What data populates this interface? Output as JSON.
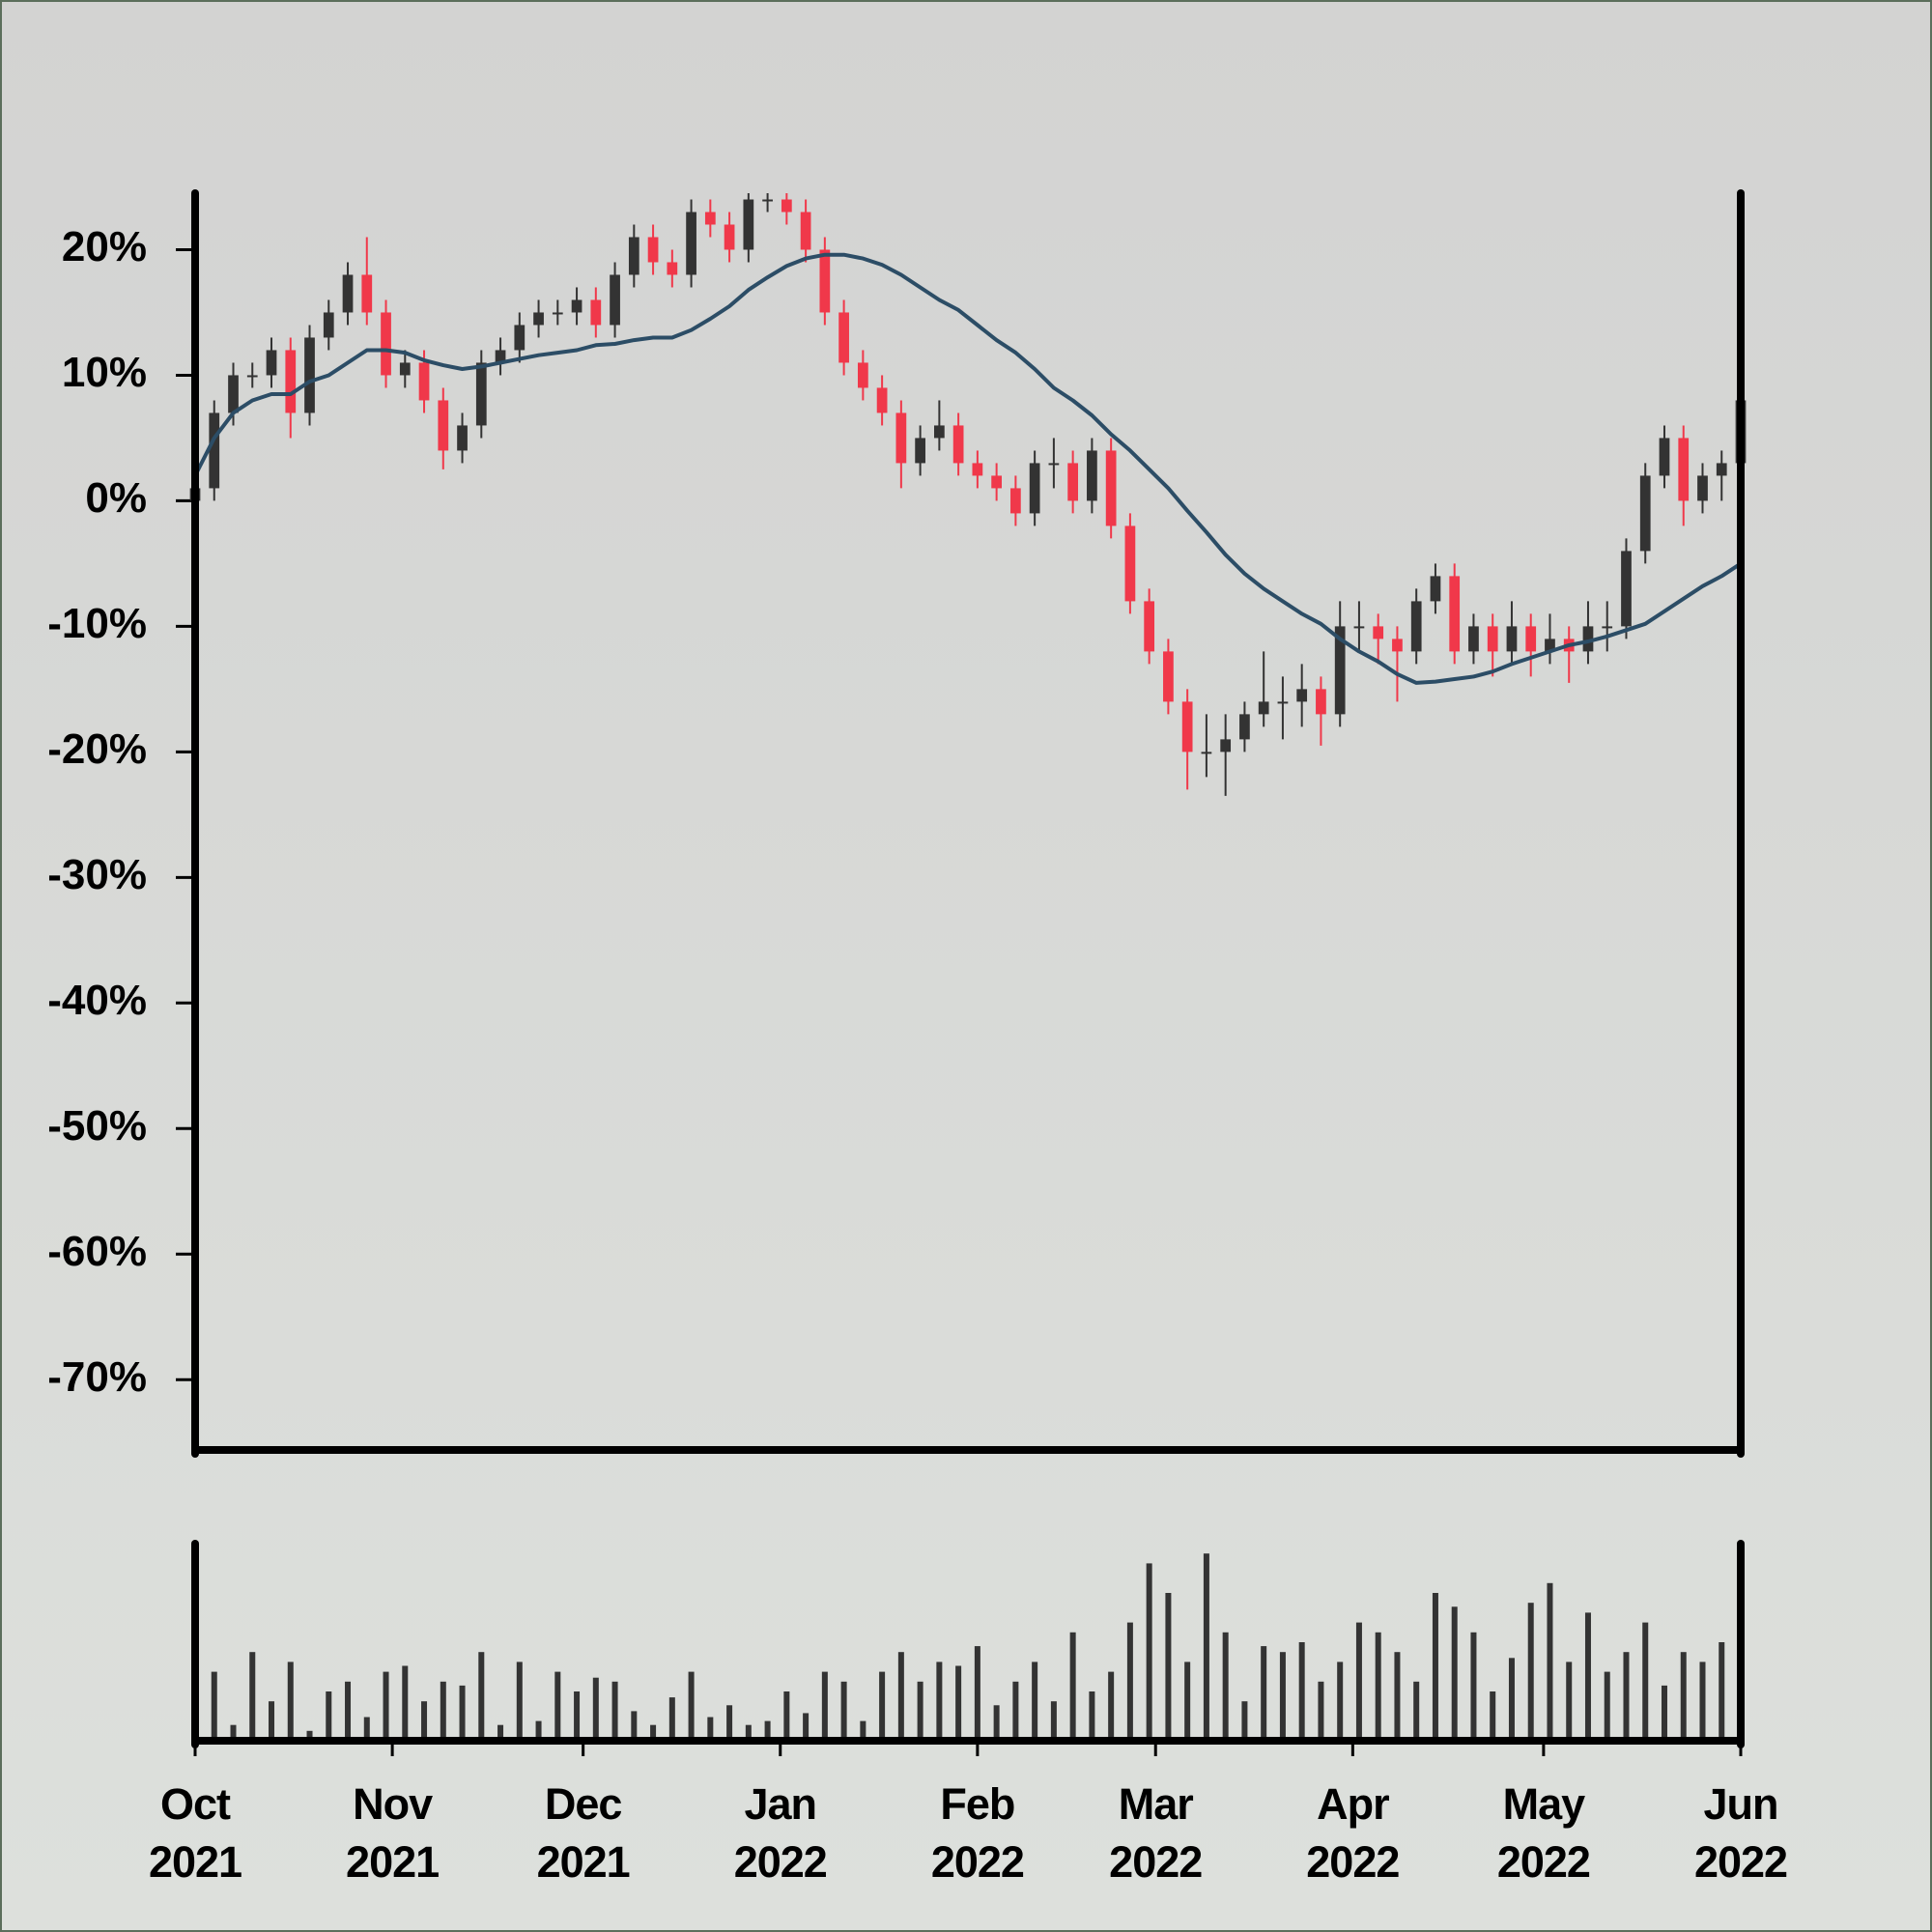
{
  "chart_data": [
    {
      "type": "candlestick",
      "x": [
        0,
        3,
        6,
        9,
        12,
        15,
        18,
        21,
        24,
        27,
        30,
        33,
        36,
        39,
        42,
        45,
        48,
        51,
        54,
        57,
        60,
        63,
        66,
        69,
        72,
        75,
        78,
        81,
        84,
        87,
        90,
        93,
        96,
        99,
        102,
        105,
        108,
        111,
        114,
        117,
        120,
        123,
        126,
        129,
        132,
        135,
        138,
        141,
        144,
        147,
        150,
        153,
        156,
        159,
        162,
        165,
        168,
        171,
        174,
        177,
        180,
        183,
        186,
        189,
        192,
        195,
        198,
        201,
        204,
        207,
        210,
        213,
        216,
        219,
        222,
        225,
        228,
        231,
        234,
        237,
        240,
        243
      ],
      "open": [
        0,
        1,
        7,
        10,
        10,
        12,
        7,
        13,
        15,
        18,
        15,
        10,
        11,
        8,
        4,
        6,
        11,
        12,
        14,
        15,
        15,
        16,
        14,
        18,
        21,
        19,
        18,
        23,
        22,
        20,
        24,
        24,
        23,
        20,
        15,
        11,
        9,
        7,
        3,
        5,
        6,
        3,
        2,
        1,
        -1,
        3,
        3,
        0,
        4,
        -2,
        -8,
        -12,
        -16,
        -20,
        -20,
        -19,
        -17,
        -16,
        -16,
        -15,
        -17,
        -10,
        -10,
        -11,
        -12,
        -8,
        -6,
        -12,
        -10,
        -12,
        -10,
        -12,
        -11,
        -12,
        -10,
        -10,
        -4,
        2,
        5,
        0,
        2,
        3
      ],
      "high": [
        2,
        8,
        11,
        11,
        13,
        13,
        14,
        16,
        19,
        21,
        16,
        12,
        12,
        9,
        7,
        12,
        13,
        15,
        16,
        16,
        17,
        17,
        19,
        22,
        22,
        20,
        24,
        24,
        23,
        24.5,
        24.5,
        24.5,
        24,
        21,
        16,
        12,
        10,
        8,
        6,
        8,
        7,
        4,
        3,
        2,
        4,
        5,
        4,
        5,
        5,
        -1,
        -7,
        -11,
        -15,
        -17,
        -17,
        -16,
        -12,
        -14,
        -13,
        -14,
        -8,
        -8,
        -9,
        -10,
        -7,
        -5,
        -5,
        -9,
        -9,
        -8,
        -9,
        -9,
        -10,
        -8,
        -8,
        -3,
        3,
        6,
        6,
        3,
        4,
        10
      ],
      "low": [
        -1,
        0,
        6,
        9,
        9,
        5,
        6,
        12,
        14,
        14,
        9,
        9,
        7,
        2.5,
        3,
        5,
        10,
        11,
        13,
        14,
        14,
        13,
        13,
        17,
        18,
        17,
        17,
        21,
        19,
        19,
        23,
        22,
        19,
        14,
        10,
        8,
        6,
        1,
        2,
        4,
        2,
        1,
        0,
        -2,
        -2,
        1,
        -1,
        -1,
        -3,
        -9,
        -13,
        -17,
        -23,
        -22,
        -23.5,
        -20,
        -18,
        -19,
        -18,
        -19.5,
        -18,
        -12,
        -13,
        -16,
        -13,
        -9,
        -13,
        -13,
        -14,
        -13,
        -14,
        -13,
        -14.5,
        -13,
        -12,
        -11,
        -5,
        1,
        -2,
        -1,
        0,
        2
      ],
      "close": [
        1,
        7,
        10,
        10,
        12,
        7,
        13,
        15,
        18,
        15,
        10,
        11,
        8,
        4,
        6,
        11,
        12,
        14,
        15,
        15,
        16,
        14,
        18,
        21,
        19,
        18,
        23,
        22,
        20,
        24,
        24,
        23,
        20,
        15,
        11,
        9,
        7,
        3,
        5,
        6,
        3,
        2,
        1,
        -1,
        3,
        3,
        0,
        4,
        -2,
        -8,
        -12,
        -16,
        -20,
        -20,
        -19,
        -17,
        -16,
        -16,
        -15,
        -17,
        -10,
        -10,
        -11,
        -12,
        -8,
        -6,
        -12,
        -10,
        -12,
        -10,
        -12,
        -11,
        -12,
        -10,
        -10,
        -4,
        2,
        5,
        0,
        2,
        3,
        8
      ],
      "up_color": "#333333",
      "down_color": "#f0384a",
      "ma": {
        "color": "#2c4d66",
        "values": [
          2,
          5,
          7,
          8,
          8.5,
          8.5,
          9.5,
          10,
          11,
          12,
          12,
          11.8,
          11.2,
          10.8,
          10.5,
          10.7,
          11,
          11.3,
          11.6,
          11.8,
          12,
          12.4,
          12.5,
          12.8,
          13,
          13,
          13.6,
          14.5,
          15.5,
          16.8,
          17.8,
          18.7,
          19.3,
          19.6,
          19.6,
          19.3,
          18.8,
          18,
          17,
          16,
          15.2,
          14,
          12.8,
          11.8,
          10.5,
          9,
          8,
          6.8,
          5.3,
          4,
          2.5,
          1,
          -0.8,
          -2.5,
          -4.3,
          -5.8,
          -7,
          -8,
          -9,
          -9.8,
          -11,
          -12,
          -12.8,
          -13.8,
          -14.5,
          -14.4,
          -14.2,
          -14,
          -13.6,
          -13,
          -12.5,
          -12,
          -11.5,
          -11.2,
          -10.8,
          -10.3,
          -9.8,
          -8.8,
          -7.8,
          -6.8,
          -6,
          -5
        ]
      },
      "xlim": [
        0,
        243
      ],
      "ylim": [
        -75.6,
        24.5
      ],
      "yticks": [
        {
          "value": -70,
          "label": "-70%"
        },
        {
          "value": -60,
          "label": "-60%"
        },
        {
          "value": -50,
          "label": "-50%"
        },
        {
          "value": -40,
          "label": "-40%"
        },
        {
          "value": -30,
          "label": "-30%"
        },
        {
          "value": -20,
          "label": "-20%"
        },
        {
          "value": -10,
          "label": "-10%"
        },
        {
          "value": 0,
          "label": "0%"
        },
        {
          "value": 10,
          "label": "10%"
        },
        {
          "value": 20,
          "label": "20%"
        }
      ]
    },
    {
      "type": "bar",
      "x": [
        0,
        3,
        6,
        9,
        12,
        15,
        18,
        21,
        24,
        27,
        30,
        33,
        36,
        39,
        42,
        45,
        48,
        51,
        54,
        57,
        60,
        63,
        66,
        69,
        72,
        75,
        78,
        81,
        84,
        87,
        90,
        93,
        96,
        99,
        102,
        105,
        108,
        111,
        114,
        117,
        120,
        123,
        126,
        129,
        132,
        135,
        138,
        141,
        144,
        147,
        150,
        153,
        156,
        159,
        162,
        165,
        168,
        171,
        174,
        177,
        180,
        183,
        186,
        189,
        192,
        195,
        198,
        201,
        204,
        207,
        210,
        213,
        216,
        219,
        222,
        225,
        228,
        231,
        234,
        237,
        240,
        243
      ],
      "values": [
        10,
        35,
        8,
        45,
        20,
        40,
        5,
        25,
        30,
        12,
        35,
        38,
        20,
        30,
        28,
        45,
        8,
        40,
        10,
        35,
        25,
        32,
        30,
        15,
        8,
        22,
        35,
        12,
        18,
        8,
        10,
        25,
        14,
        35,
        30,
        10,
        35,
        45,
        30,
        40,
        38,
        48,
        18,
        30,
        40,
        20,
        55,
        25,
        35,
        60,
        90,
        75,
        40,
        95,
        55,
        20,
        48,
        45,
        50,
        30,
        40,
        60,
        55,
        45,
        30,
        75,
        68,
        55,
        25,
        42,
        70,
        80,
        40,
        65,
        35,
        45,
        60,
        28,
        45,
        40,
        50,
        35
      ],
      "color": "#333333",
      "xlim": [
        0,
        243
      ],
      "ylim": [
        0,
        100
      ],
      "xticks": [
        {
          "value": 0,
          "label": "Oct\n2021"
        },
        {
          "value": 31,
          "label": "Nov\n2021"
        },
        {
          "value": 61,
          "label": "Dec\n2021"
        },
        {
          "value": 92,
          "label": "Jan\n2022"
        },
        {
          "value": 123,
          "label": "Feb\n2022"
        },
        {
          "value": 151,
          "label": "Mar\n2022"
        },
        {
          "value": 182,
          "label": "Apr\n2022"
        },
        {
          "value": 212,
          "label": "May\n2022"
        },
        {
          "value": 243,
          "label": "Jun\n2022"
        }
      ]
    }
  ]
}
